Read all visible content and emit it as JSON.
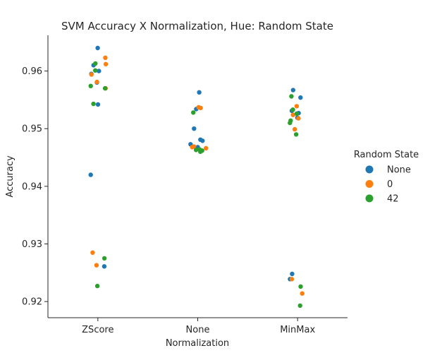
{
  "chart_data": {
    "type": "scatter",
    "title": "SVM Accuracy X Normalization, Hue: Random State",
    "xlabel": "Normalization",
    "ylabel": "Accuracy",
    "categories": [
      "ZScore",
      "None",
      "MinMax"
    ],
    "ylim": [
      0.9172,
      0.9662
    ],
    "yticks": [
      "0.92",
      "0.93",
      "0.94",
      "0.95",
      "0.96"
    ],
    "yticks_values": [
      0.92,
      0.93,
      0.94,
      0.95,
      0.96
    ],
    "grid": false,
    "legend": {
      "title": "Random State",
      "placement": "right"
    },
    "series": [
      {
        "name": "None",
        "color": "#1f77b4",
        "points": [
          {
            "category": "ZScore",
            "y": 0.964
          },
          {
            "category": "ZScore",
            "y": 0.96
          },
          {
            "category": "ZScore",
            "y": 0.9595
          },
          {
            "category": "ZScore",
            "y": 0.961
          },
          {
            "category": "ZScore",
            "y": 0.958
          },
          {
            "category": "ZScore",
            "y": 0.9542
          },
          {
            "category": "ZScore",
            "y": 0.942
          },
          {
            "category": "ZScore",
            "y": 0.9261
          },
          {
            "category": "None",
            "y": 0.9563
          },
          {
            "category": "None",
            "y": 0.9534
          },
          {
            "category": "None",
            "y": 0.95
          },
          {
            "category": "None",
            "y": 0.9479
          },
          {
            "category": "None",
            "y": 0.9481
          },
          {
            "category": "None",
            "y": 0.9473
          },
          {
            "category": "None",
            "y": 0.9468
          },
          {
            "category": "MinMax",
            "y": 0.9567
          },
          {
            "category": "MinMax",
            "y": 0.9554
          },
          {
            "category": "MinMax",
            "y": 0.9531
          },
          {
            "category": "MinMax",
            "y": 0.9527
          },
          {
            "category": "MinMax",
            "y": 0.9519
          },
          {
            "category": "MinMax",
            "y": 0.9248
          },
          {
            "category": "MinMax",
            "y": 0.9239
          }
        ]
      },
      {
        "name": "0",
        "color": "#ff7f0e",
        "points": [
          {
            "category": "ZScore",
            "y": 0.9623
          },
          {
            "category": "ZScore",
            "y": 0.9612
          },
          {
            "category": "ZScore",
            "y": 0.9594
          },
          {
            "category": "ZScore",
            "y": 0.9581
          },
          {
            "category": "ZScore",
            "y": 0.957
          },
          {
            "category": "ZScore",
            "y": 0.9285
          },
          {
            "category": "ZScore",
            "y": 0.9263
          },
          {
            "category": "None",
            "y": 0.9537
          },
          {
            "category": "None",
            "y": 0.9536
          },
          {
            "category": "None",
            "y": 0.9469
          },
          {
            "category": "None",
            "y": 0.9468
          },
          {
            "category": "None",
            "y": 0.9466
          },
          {
            "category": "MinMax",
            "y": 0.9539
          },
          {
            "category": "MinMax",
            "y": 0.9524
          },
          {
            "category": "MinMax",
            "y": 0.9518
          },
          {
            "category": "MinMax",
            "y": 0.9499
          },
          {
            "category": "MinMax",
            "y": 0.9239
          },
          {
            "category": "MinMax",
            "y": 0.9214
          }
        ]
      },
      {
        "name": "42",
        "color": "#2ca02c",
        "points": [
          {
            "category": "ZScore",
            "y": 0.9613
          },
          {
            "category": "ZScore",
            "y": 0.9601
          },
          {
            "category": "ZScore",
            "y": 0.9574
          },
          {
            "category": "ZScore",
            "y": 0.957
          },
          {
            "category": "ZScore",
            "y": 0.9543
          },
          {
            "category": "ZScore",
            "y": 0.9275
          },
          {
            "category": "ZScore",
            "y": 0.9227
          },
          {
            "category": "None",
            "y": 0.9528
          },
          {
            "category": "None",
            "y": 0.9464
          },
          {
            "category": "None",
            "y": 0.9463
          },
          {
            "category": "None",
            "y": 0.9462
          },
          {
            "category": "None",
            "y": 0.946
          },
          {
            "category": "MinMax",
            "y": 0.9556
          },
          {
            "category": "MinMax",
            "y": 0.9533
          },
          {
            "category": "MinMax",
            "y": 0.9526
          },
          {
            "category": "MinMax",
            "y": 0.9514
          },
          {
            "category": "MinMax",
            "y": 0.951
          },
          {
            "category": "MinMax",
            "y": 0.949
          },
          {
            "category": "MinMax",
            "y": 0.9226
          },
          {
            "category": "MinMax",
            "y": 0.9193
          }
        ]
      }
    ]
  }
}
